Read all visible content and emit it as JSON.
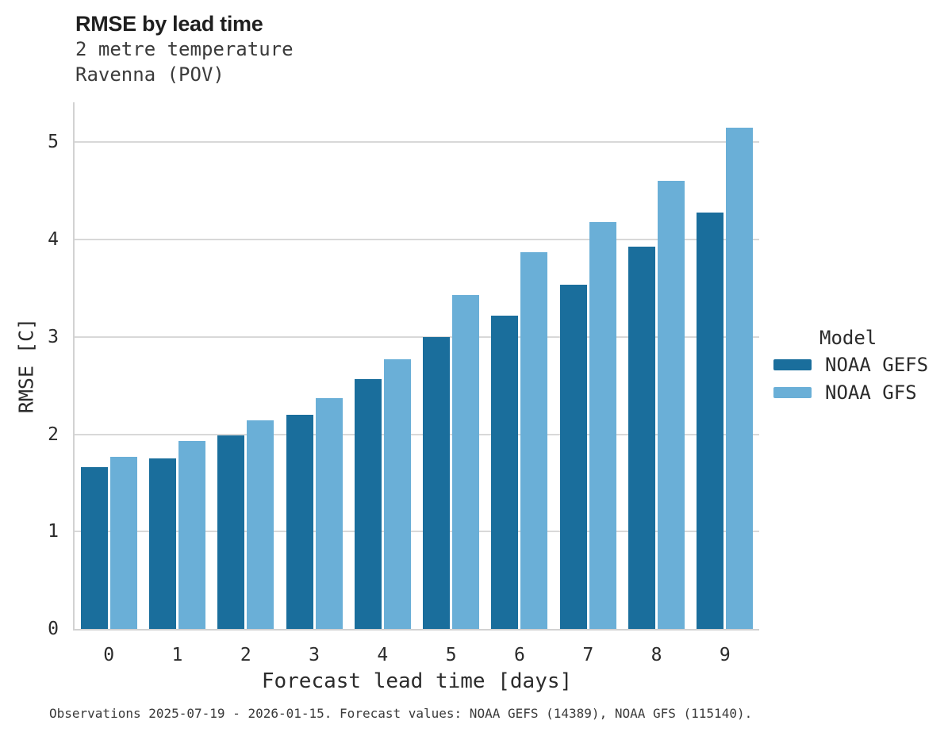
{
  "header": {
    "title": "RMSE by lead time",
    "subtitle_line1": "2 metre temperature",
    "subtitle_line2": "Ravenna (POV)"
  },
  "chart_data": {
    "type": "bar",
    "title": "RMSE by lead time",
    "subtitle": [
      "2 metre temperature",
      "Ravenna (POV)"
    ],
    "categories": [
      "0",
      "1",
      "2",
      "3",
      "4",
      "5",
      "6",
      "7",
      "8",
      "9"
    ],
    "series": [
      {
        "name": "NOAA GEFS",
        "color": "#1a6e9c",
        "values": [
          1.66,
          1.75,
          1.99,
          2.2,
          2.57,
          3.0,
          3.22,
          3.54,
          3.93,
          4.28
        ]
      },
      {
        "name": "NOAA GFS",
        "color": "#6aafd7",
        "values": [
          1.77,
          1.93,
          2.14,
          2.37,
          2.77,
          3.43,
          3.87,
          4.18,
          4.6,
          5.15
        ]
      }
    ],
    "xlabel": "Forecast lead time [days]",
    "ylabel": "RMSE [C]",
    "ylim": [
      0,
      5.41
    ],
    "yticks": [
      0,
      1,
      2,
      3,
      4,
      5
    ],
    "grid": "horizontal",
    "legend_title": "Model",
    "legend_position": "right"
  },
  "footer": {
    "note": "Observations 2025-07-19 - 2026-01-15. Forecast values: NOAA GEFS (14389), NOAA GFS (115140)."
  }
}
